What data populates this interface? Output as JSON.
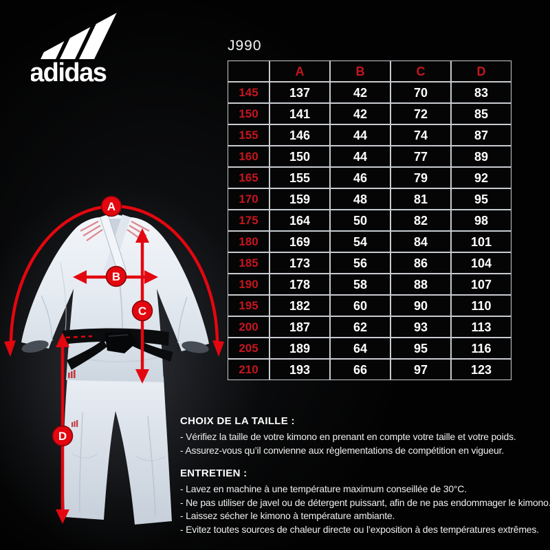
{
  "brand": {
    "wordmark": "adidas"
  },
  "product": {
    "code": "J990"
  },
  "table": {
    "corner_label": "",
    "columns": [
      "A",
      "B",
      "C",
      "D"
    ],
    "rows": [
      {
        "size": "145",
        "values": [
          "137",
          "42",
          "70",
          "83"
        ]
      },
      {
        "size": "150",
        "values": [
          "141",
          "42",
          "72",
          "85"
        ]
      },
      {
        "size": "155",
        "values": [
          "146",
          "44",
          "74",
          "87"
        ]
      },
      {
        "size": "160",
        "values": [
          "150",
          "44",
          "77",
          "89"
        ]
      },
      {
        "size": "165",
        "values": [
          "155",
          "46",
          "79",
          "92"
        ]
      },
      {
        "size": "170",
        "values": [
          "159",
          "48",
          "81",
          "95"
        ]
      },
      {
        "size": "175",
        "values": [
          "164",
          "50",
          "82",
          "98"
        ]
      },
      {
        "size": "180",
        "values": [
          "169",
          "54",
          "84",
          "101"
        ]
      },
      {
        "size": "185",
        "values": [
          "173",
          "56",
          "86",
          "104"
        ]
      },
      {
        "size": "190",
        "values": [
          "178",
          "58",
          "88",
          "107"
        ]
      },
      {
        "size": "195",
        "values": [
          "182",
          "60",
          "90",
          "110"
        ]
      },
      {
        "size": "200",
        "values": [
          "187",
          "62",
          "93",
          "113"
        ]
      },
      {
        "size": "205",
        "values": [
          "189",
          "64",
          "95",
          "116"
        ]
      },
      {
        "size": "210",
        "values": [
          "193",
          "66",
          "97",
          "123"
        ]
      }
    ]
  },
  "diagram": {
    "badges": [
      "A",
      "B",
      "C",
      "D"
    ]
  },
  "sections": [
    {
      "heading": "CHOIX DE LA TAILLE :",
      "bullets": [
        "- Vérifiez la taille de votre kimono en prenant en compte votre taille et votre poids.",
        "- Assurez-vous qu’il convienne aux règlementations de compétition en vigueur."
      ]
    },
    {
      "heading": "ENTRETIEN :",
      "bullets": [
        "- Lavez en machine à une température maximum conseillée de 30°C.",
        "- Ne pas utiliser de javel ou de détergent puissant, afin de ne pas endommager le kimono.",
        "- Laissez sécher le kimono à température ambiante.",
        "- Evitez toutes sources de chaleur directe ou l’exposition à des températures extrêmes."
      ]
    }
  ],
  "colors": {
    "accent_red": "#e3070f",
    "table_red": "#c5161f",
    "border_gray": "#c9cdd1",
    "background": "#020202",
    "gi_white": "#e7edf3"
  }
}
